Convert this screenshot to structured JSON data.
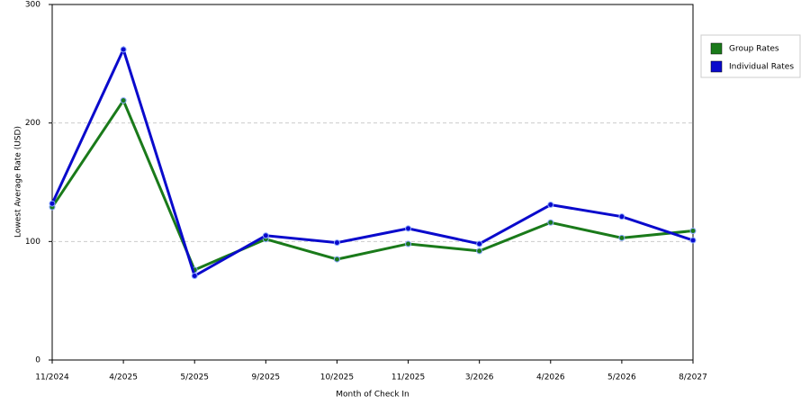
{
  "chart_data": {
    "type": "line",
    "y_label": "Lowest Average Rate (USD)",
    "x_label": "Month of Check In",
    "categories": [
      "11/2024",
      "4/2025",
      "5/2025",
      "9/2025",
      "10/2025",
      "11/2025",
      "3/2026",
      "4/2026",
      "5/2026",
      "8/2027"
    ],
    "series": [
      {
        "name": "Group Rates",
        "color": "#1a7a1a",
        "values": [
          129,
          219,
          76,
          102,
          85,
          98,
          92,
          116,
          103,
          109
        ]
      },
      {
        "name": "Individual Rates",
        "color": "#0a0acc",
        "values": [
          132,
          262,
          71,
          105,
          99,
          111,
          98,
          131,
          121,
          101
        ]
      }
    ],
    "ylim": [
      0,
      300
    ],
    "yticks": [
      0,
      100,
      200,
      300
    ],
    "grid": true,
    "legend": "right"
  }
}
